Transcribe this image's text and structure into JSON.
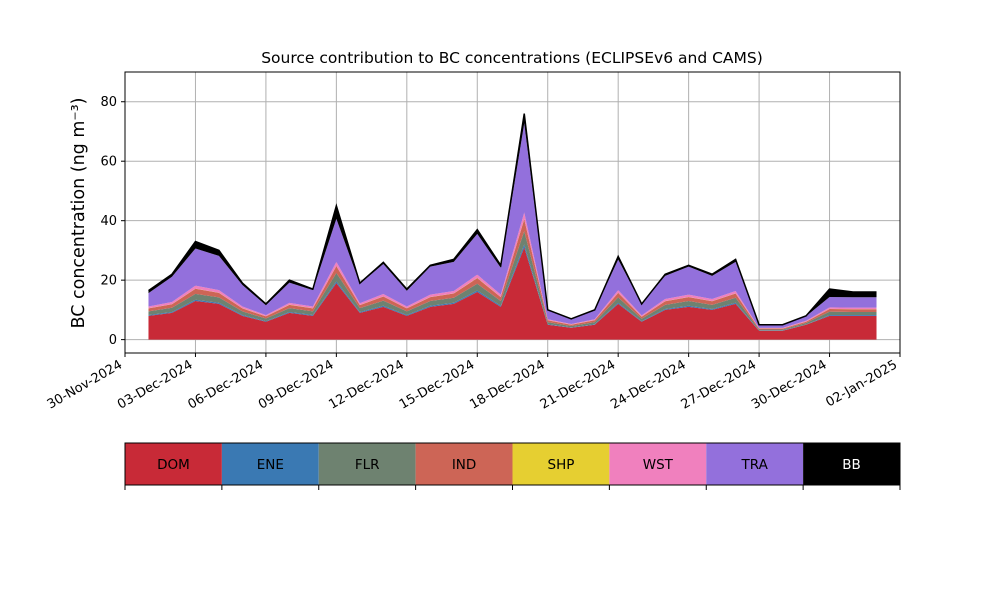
{
  "chart_data": {
    "type": "area",
    "stacked": true,
    "title": "Source contribution to BC concentrations (ECLIPSEv6 and CAMS)",
    "ylabel": "BC concentration (ng m⁻³)",
    "xlabel": "",
    "x_start": "2024-12-01",
    "x_range": [
      "2024-11-30",
      "2025-01-02"
    ],
    "ylim": [
      -4.5,
      90
    ],
    "yticks": [
      0,
      20,
      40,
      60,
      80
    ],
    "xtick_labels": [
      "30-Nov-2024",
      "03-Dec-2024",
      "06-Dec-2024",
      "09-Dec-2024",
      "12-Dec-2024",
      "15-Dec-2024",
      "18-Dec-2024",
      "21-Dec-2024",
      "24-Dec-2024",
      "27-Dec-2024",
      "30-Dec-2024",
      "02-Jan-2025"
    ],
    "grid": true,
    "legend_position": "below",
    "x": [
      "2024-12-01",
      "2024-12-02",
      "2024-12-03",
      "2024-12-04",
      "2024-12-05",
      "2024-12-06",
      "2024-12-07",
      "2024-12-08",
      "2024-12-09",
      "2024-12-10",
      "2024-12-11",
      "2024-12-12",
      "2024-12-13",
      "2024-12-14",
      "2024-12-15",
      "2024-12-16",
      "2024-12-17",
      "2024-12-18",
      "2024-12-19",
      "2024-12-20",
      "2024-12-21",
      "2024-12-22",
      "2024-12-23",
      "2024-12-24",
      "2024-12-25",
      "2024-12-26",
      "2024-12-27",
      "2024-12-28",
      "2024-12-29",
      "2024-12-30",
      "2024-12-31",
      "2025-01-01"
    ],
    "total": [
      17,
      22,
      33,
      30,
      19,
      12,
      20,
      17,
      45,
      19,
      26,
      17,
      25,
      26,
      37,
      25,
      75,
      10,
      7,
      10,
      28,
      12,
      22,
      25,
      22,
      27,
      5,
      5,
      8,
      17,
      16,
      16
    ],
    "series": [
      {
        "name": "DOM",
        "color": "#c82a37",
        "values": [
          8,
          9,
          13,
          12,
          8,
          6,
          9,
          8,
          19,
          9,
          11,
          8,
          11,
          12,
          16,
          11,
          31,
          5,
          4,
          5,
          12,
          6,
          10,
          11,
          10,
          12,
          3,
          3,
          5,
          8,
          8,
          8
        ]
      },
      {
        "name": "ENE",
        "color": "#3a79b3",
        "values": [
          0.3,
          0.3,
          0.4,
          0.4,
          0.3,
          0.2,
          0.3,
          0.3,
          0.6,
          0.3,
          0.4,
          0.3,
          0.4,
          0.4,
          0.5,
          0.4,
          1.0,
          0.2,
          0.1,
          0.2,
          0.4,
          0.2,
          0.3,
          0.4,
          0.3,
          0.4,
          0.1,
          0.1,
          0.1,
          0.3,
          0.3,
          0.3
        ]
      },
      {
        "name": "FLR",
        "color": "#6e8270",
        "values": [
          1.2,
          1.4,
          2.0,
          1.8,
          1.2,
          0.9,
          1.3,
          1.2,
          2.8,
          1.3,
          1.7,
          1.2,
          1.6,
          1.7,
          2.3,
          1.6,
          4.5,
          0.7,
          0.5,
          0.7,
          1.8,
          0.8,
          1.4,
          1.6,
          1.4,
          1.7,
          0.3,
          0.3,
          0.5,
          1.1,
          1.0,
          1.0
        ]
      },
      {
        "name": "IND",
        "color": "#cd6556",
        "values": [
          1.0,
          1.2,
          1.7,
          1.5,
          1.0,
          0.7,
          1.1,
          1.0,
          2.3,
          1.0,
          1.4,
          1.0,
          1.3,
          1.4,
          1.9,
          1.3,
          4.0,
          0.6,
          0.4,
          0.6,
          1.5,
          0.7,
          1.2,
          1.3,
          1.2,
          1.4,
          0.3,
          0.3,
          0.4,
          0.9,
          0.9,
          0.9
        ]
      },
      {
        "name": "SHP",
        "color": "#e6cf31",
        "values": [
          0.05,
          0.05,
          0.05,
          0.05,
          0.05,
          0.05,
          0.05,
          0.05,
          0.05,
          0.05,
          0.05,
          0.05,
          0.05,
          0.05,
          0.05,
          0.05,
          0.05,
          0.05,
          0.05,
          0.05,
          0.05,
          0.05,
          0.05,
          0.05,
          0.05,
          0.05,
          0.05,
          0.05,
          0.05,
          0.05,
          0.05,
          0.05
        ]
      },
      {
        "name": "WST",
        "color": "#f080be",
        "values": [
          0.6,
          0.7,
          1.0,
          0.9,
          0.6,
          0.4,
          0.6,
          0.6,
          1.4,
          0.6,
          0.8,
          0.6,
          0.8,
          0.8,
          1.1,
          0.8,
          2.2,
          0.3,
          0.2,
          0.3,
          0.9,
          0.4,
          0.7,
          0.8,
          0.7,
          0.8,
          0.2,
          0.2,
          0.3,
          0.5,
          0.5,
          0.5
        ]
      },
      {
        "name": "TRA",
        "color": "#9370dc",
        "values": [
          4.5,
          8.5,
          12.5,
          11.5,
          7.2,
          3.3,
          6.8,
          5.5,
          14.5,
          6.5,
          10.1,
          5.3,
          9.4,
          9.8,
          13.7,
          9.0,
          30.0,
          3.1,
          1.7,
          3.0,
          10.3,
          3.8,
          7.8,
          9.4,
          7.8,
          9.8,
          1.0,
          1.0,
          1.5,
          3.5,
          3.5,
          3.5
        ]
      },
      {
        "name": "BB",
        "color": "#000000",
        "values": [
          0.85,
          0.85,
          2.35,
          1.85,
          0.65,
          0.45,
          0.85,
          0.35,
          4.35,
          0.25,
          0.55,
          0.55,
          0.45,
          0.85,
          1.45,
          0.85,
          3.25,
          0.05,
          0.05,
          0.15,
          1.05,
          0.05,
          0.55,
          0.45,
          0.55,
          0.85,
          0.05,
          0.05,
          0.15,
          2.65,
          1.75,
          1.75
        ]
      }
    ]
  }
}
